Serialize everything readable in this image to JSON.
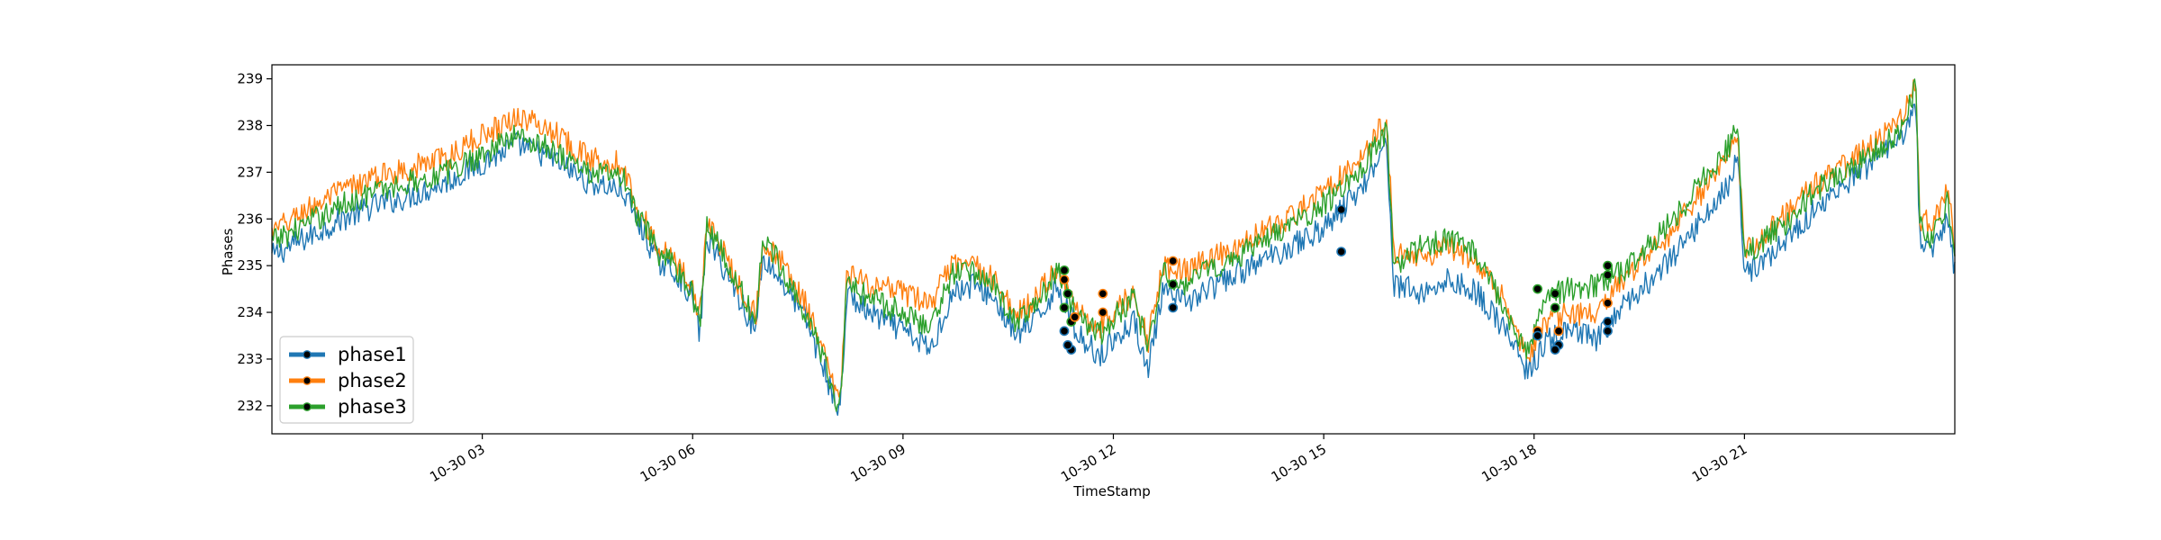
{
  "chart_data": {
    "type": "line",
    "title": "",
    "xlabel": "TimeStamp",
    "ylabel": "Phases",
    "xlim": [
      "10-30 00:00",
      "24:00"
    ],
    "ylim": [
      231.4,
      239.3
    ],
    "x_ticks": [
      {
        "hour": 3,
        "label": "10-30 03"
      },
      {
        "hour": 6,
        "label": "10-30 06"
      },
      {
        "hour": 9,
        "label": "10-30 09"
      },
      {
        "hour": 12,
        "label": "10-30 12"
      },
      {
        "hour": 15,
        "label": "10-30 15"
      },
      {
        "hour": 18,
        "label": "10-30 18"
      },
      {
        "hour": 21,
        "label": "10-30 21"
      }
    ],
    "y_ticks": [
      {
        "value": 232,
        "label": "232"
      },
      {
        "value": 233,
        "label": "233"
      },
      {
        "value": 234,
        "label": "234"
      },
      {
        "value": 235,
        "label": "235"
      },
      {
        "value": 236,
        "label": "236"
      },
      {
        "value": 237,
        "label": "237"
      },
      {
        "value": 238,
        "label": "238"
      },
      {
        "value": 239,
        "label": "239"
      }
    ],
    "legend_position": "lower-left",
    "marker_style": "black dots outlined in series color",
    "series": [
      {
        "name": "phase1",
        "color": "#1f77b4",
        "points": [
          [
            0.0,
            235.2
          ],
          [
            0.5,
            235.6
          ],
          [
            1.0,
            236.0
          ],
          [
            1.5,
            236.3
          ],
          [
            2.0,
            236.5
          ],
          [
            2.5,
            236.8
          ],
          [
            3.0,
            237.2
          ],
          [
            3.5,
            237.6
          ],
          [
            4.0,
            237.3
          ],
          [
            4.5,
            236.8
          ],
          [
            5.0,
            236.6
          ],
          [
            5.2,
            236.0
          ],
          [
            5.5,
            235.1
          ],
          [
            5.8,
            234.8
          ],
          [
            6.0,
            234.3
          ],
          [
            6.1,
            233.5
          ],
          [
            6.2,
            235.6
          ],
          [
            6.5,
            234.8
          ],
          [
            6.9,
            233.6
          ],
          [
            7.0,
            235.2
          ],
          [
            7.3,
            234.6
          ],
          [
            7.6,
            233.9
          ],
          [
            7.8,
            233.1
          ],
          [
            8.1,
            231.8
          ],
          [
            8.2,
            234.4
          ],
          [
            8.5,
            234.0
          ],
          [
            9.0,
            233.6
          ],
          [
            9.4,
            233.2
          ],
          [
            9.7,
            234.4
          ],
          [
            10.0,
            234.6
          ],
          [
            10.3,
            234.3
          ],
          [
            10.6,
            233.5
          ],
          [
            10.9,
            233.8
          ],
          [
            11.2,
            234.6
          ],
          [
            11.5,
            233.5
          ],
          [
            11.8,
            233.1
          ],
          [
            12.0,
            233.4
          ],
          [
            12.3,
            233.8
          ],
          [
            12.5,
            232.8
          ],
          [
            12.7,
            234.4
          ],
          [
            13.0,
            234.2
          ],
          [
            13.5,
            234.6
          ],
          [
            14.0,
            235.0
          ],
          [
            14.5,
            235.4
          ],
          [
            15.0,
            235.8
          ],
          [
            15.5,
            236.6
          ],
          [
            15.9,
            237.6
          ],
          [
            16.0,
            234.6
          ],
          [
            16.4,
            234.4
          ],
          [
            16.8,
            234.7
          ],
          [
            17.2,
            234.4
          ],
          [
            17.6,
            233.6
          ],
          [
            17.9,
            232.7
          ],
          [
            18.2,
            233.4
          ],
          [
            18.5,
            233.6
          ],
          [
            18.9,
            233.4
          ],
          [
            19.2,
            234.0
          ],
          [
            19.6,
            234.6
          ],
          [
            20.0,
            235.2
          ],
          [
            20.4,
            236.0
          ],
          [
            20.8,
            236.8
          ],
          [
            20.9,
            237.4
          ],
          [
            21.0,
            234.8
          ],
          [
            21.5,
            235.4
          ],
          [
            22.0,
            236.2
          ],
          [
            22.5,
            236.8
          ],
          [
            23.0,
            237.4
          ],
          [
            23.2,
            237.6
          ],
          [
            23.45,
            238.4
          ],
          [
            23.5,
            235.6
          ],
          [
            23.7,
            235.3
          ],
          [
            23.9,
            236.0
          ],
          [
            24.0,
            234.9
          ]
        ]
      },
      {
        "name": "phase2",
        "color": "#ff7f0e",
        "points": [
          [
            0.0,
            235.7
          ],
          [
            0.5,
            236.2
          ],
          [
            1.0,
            236.6
          ],
          [
            1.5,
            236.9
          ],
          [
            2.0,
            237.1
          ],
          [
            2.5,
            237.3
          ],
          [
            3.0,
            237.8
          ],
          [
            3.5,
            238.2
          ],
          [
            4.0,
            237.9
          ],
          [
            4.5,
            237.3
          ],
          [
            5.0,
            237.2
          ],
          [
            5.2,
            236.3
          ],
          [
            5.5,
            235.4
          ],
          [
            5.8,
            235.0
          ],
          [
            6.0,
            234.6
          ],
          [
            6.1,
            233.8
          ],
          [
            6.2,
            236.0
          ],
          [
            6.5,
            235.1
          ],
          [
            6.9,
            233.9
          ],
          [
            7.0,
            235.5
          ],
          [
            7.3,
            235.0
          ],
          [
            7.6,
            234.2
          ],
          [
            7.8,
            233.4
          ],
          [
            8.1,
            232.0
          ],
          [
            8.2,
            234.8
          ],
          [
            8.5,
            234.6
          ],
          [
            9.0,
            234.4
          ],
          [
            9.4,
            234.2
          ],
          [
            9.7,
            235.0
          ],
          [
            10.0,
            235.0
          ],
          [
            10.3,
            234.7
          ],
          [
            10.6,
            233.9
          ],
          [
            10.9,
            234.3
          ],
          [
            11.2,
            235.0
          ],
          [
            11.5,
            234.0
          ],
          [
            11.8,
            233.7
          ],
          [
            12.0,
            234.0
          ],
          [
            12.3,
            234.4
          ],
          [
            12.5,
            233.4
          ],
          [
            12.7,
            235.0
          ],
          [
            13.0,
            234.9
          ],
          [
            13.5,
            235.2
          ],
          [
            14.0,
            235.6
          ],
          [
            14.5,
            236.0
          ],
          [
            15.0,
            236.6
          ],
          [
            15.5,
            237.3
          ],
          [
            15.9,
            238.1
          ],
          [
            16.0,
            235.2
          ],
          [
            16.4,
            235.2
          ],
          [
            16.8,
            235.4
          ],
          [
            17.2,
            235.0
          ],
          [
            17.6,
            234.2
          ],
          [
            17.9,
            233.0
          ],
          [
            18.2,
            233.8
          ],
          [
            18.5,
            234.0
          ],
          [
            18.9,
            233.9
          ],
          [
            19.2,
            234.6
          ],
          [
            19.6,
            235.2
          ],
          [
            20.0,
            235.8
          ],
          [
            20.4,
            236.6
          ],
          [
            20.8,
            237.4
          ],
          [
            20.9,
            237.8
          ],
          [
            21.0,
            235.3
          ],
          [
            21.5,
            236.0
          ],
          [
            22.0,
            236.7
          ],
          [
            22.5,
            237.2
          ],
          [
            23.0,
            237.8
          ],
          [
            23.2,
            238.0
          ],
          [
            23.45,
            238.9
          ],
          [
            23.5,
            236.0
          ],
          [
            23.7,
            235.9
          ],
          [
            23.9,
            236.7
          ],
          [
            24.0,
            235.4
          ]
        ]
      },
      {
        "name": "phase3",
        "color": "#2ca02c",
        "points": [
          [
            0.0,
            235.5
          ],
          [
            0.5,
            235.9
          ],
          [
            1.0,
            236.3
          ],
          [
            1.5,
            236.6
          ],
          [
            2.0,
            236.8
          ],
          [
            2.5,
            237.0
          ],
          [
            3.0,
            237.4
          ],
          [
            3.5,
            237.8
          ],
          [
            4.0,
            237.5
          ],
          [
            4.5,
            237.0
          ],
          [
            5.0,
            236.9
          ],
          [
            5.2,
            236.1
          ],
          [
            5.5,
            235.3
          ],
          [
            5.8,
            234.9
          ],
          [
            6.0,
            234.4
          ],
          [
            6.1,
            233.7
          ],
          [
            6.2,
            235.9
          ],
          [
            6.5,
            235.0
          ],
          [
            6.9,
            233.8
          ],
          [
            7.0,
            235.6
          ],
          [
            7.3,
            234.9
          ],
          [
            7.6,
            234.0
          ],
          [
            7.8,
            233.3
          ],
          [
            8.1,
            231.9
          ],
          [
            8.2,
            234.7
          ],
          [
            8.5,
            234.3
          ],
          [
            9.0,
            234.0
          ],
          [
            9.4,
            233.7
          ],
          [
            9.7,
            234.8
          ],
          [
            10.0,
            234.9
          ],
          [
            10.3,
            234.6
          ],
          [
            10.6,
            233.8
          ],
          [
            10.9,
            234.1
          ],
          [
            11.2,
            234.9
          ],
          [
            11.5,
            233.9
          ],
          [
            11.8,
            233.5
          ],
          [
            12.0,
            233.9
          ],
          [
            12.3,
            234.3
          ],
          [
            12.5,
            233.1
          ],
          [
            12.7,
            234.9
          ],
          [
            13.0,
            234.6
          ],
          [
            13.5,
            235.0
          ],
          [
            14.0,
            235.4
          ],
          [
            14.5,
            235.8
          ],
          [
            15.0,
            236.3
          ],
          [
            15.5,
            237.0
          ],
          [
            15.9,
            237.9
          ],
          [
            16.0,
            235.0
          ],
          [
            16.4,
            235.4
          ],
          [
            16.8,
            235.6
          ],
          [
            17.2,
            235.2
          ],
          [
            17.6,
            234.0
          ],
          [
            17.9,
            233.2
          ],
          [
            18.2,
            234.4
          ],
          [
            18.5,
            234.5
          ],
          [
            18.9,
            234.6
          ],
          [
            19.2,
            234.8
          ],
          [
            19.6,
            235.4
          ],
          [
            20.0,
            236.0
          ],
          [
            20.4,
            236.8
          ],
          [
            20.8,
            237.6
          ],
          [
            20.9,
            238.0
          ],
          [
            21.0,
            235.2
          ],
          [
            21.5,
            235.8
          ],
          [
            22.0,
            236.6
          ],
          [
            22.5,
            237.0
          ],
          [
            23.0,
            237.6
          ],
          [
            23.2,
            237.9
          ],
          [
            23.45,
            238.8
          ],
          [
            23.5,
            235.8
          ],
          [
            23.7,
            235.6
          ],
          [
            23.9,
            236.4
          ],
          [
            24.0,
            235.2
          ]
        ]
      }
    ],
    "marked_points": [
      {
        "x": 11.3,
        "y": 234.7,
        "series": "phase2"
      },
      {
        "x": 11.35,
        "y": 234.4,
        "series": "phase3"
      },
      {
        "x": 11.3,
        "y": 234.1,
        "series": "phase3"
      },
      {
        "x": 11.4,
        "y": 233.8,
        "series": "phase3"
      },
      {
        "x": 11.3,
        "y": 233.6,
        "series": "phase1"
      },
      {
        "x": 11.4,
        "y": 233.2,
        "series": "phase1"
      },
      {
        "x": 11.3,
        "y": 234.9,
        "series": "phase3"
      },
      {
        "x": 11.45,
        "y": 233.9,
        "series": "phase2"
      },
      {
        "x": 11.35,
        "y": 233.3,
        "series": "phase1"
      },
      {
        "x": 11.85,
        "y": 234.4,
        "series": "phase2"
      },
      {
        "x": 11.85,
        "y": 234.0,
        "series": "phase2"
      },
      {
        "x": 12.85,
        "y": 235.1,
        "series": "phase2"
      },
      {
        "x": 12.85,
        "y": 234.6,
        "series": "phase3"
      },
      {
        "x": 12.85,
        "y": 234.1,
        "series": "phase1"
      },
      {
        "x": 15.25,
        "y": 236.2,
        "series": "phase1"
      },
      {
        "x": 15.25,
        "y": 235.3,
        "series": "phase1"
      },
      {
        "x": 18.05,
        "y": 234.5,
        "series": "phase3"
      },
      {
        "x": 18.05,
        "y": 233.6,
        "series": "phase2"
      },
      {
        "x": 18.05,
        "y": 233.5,
        "series": "phase1"
      },
      {
        "x": 18.3,
        "y": 234.4,
        "series": "phase3"
      },
      {
        "x": 18.3,
        "y": 234.1,
        "series": "phase3"
      },
      {
        "x": 18.35,
        "y": 233.6,
        "series": "phase2"
      },
      {
        "x": 18.35,
        "y": 233.3,
        "series": "phase1"
      },
      {
        "x": 18.3,
        "y": 233.2,
        "series": "phase1"
      },
      {
        "x": 19.05,
        "y": 235.0,
        "series": "phase3"
      },
      {
        "x": 19.05,
        "y": 234.8,
        "series": "phase3"
      },
      {
        "x": 19.05,
        "y": 234.2,
        "series": "phase2"
      },
      {
        "x": 19.05,
        "y": 233.8,
        "series": "phase1"
      },
      {
        "x": 19.05,
        "y": 233.6,
        "series": "phase1"
      }
    ]
  }
}
